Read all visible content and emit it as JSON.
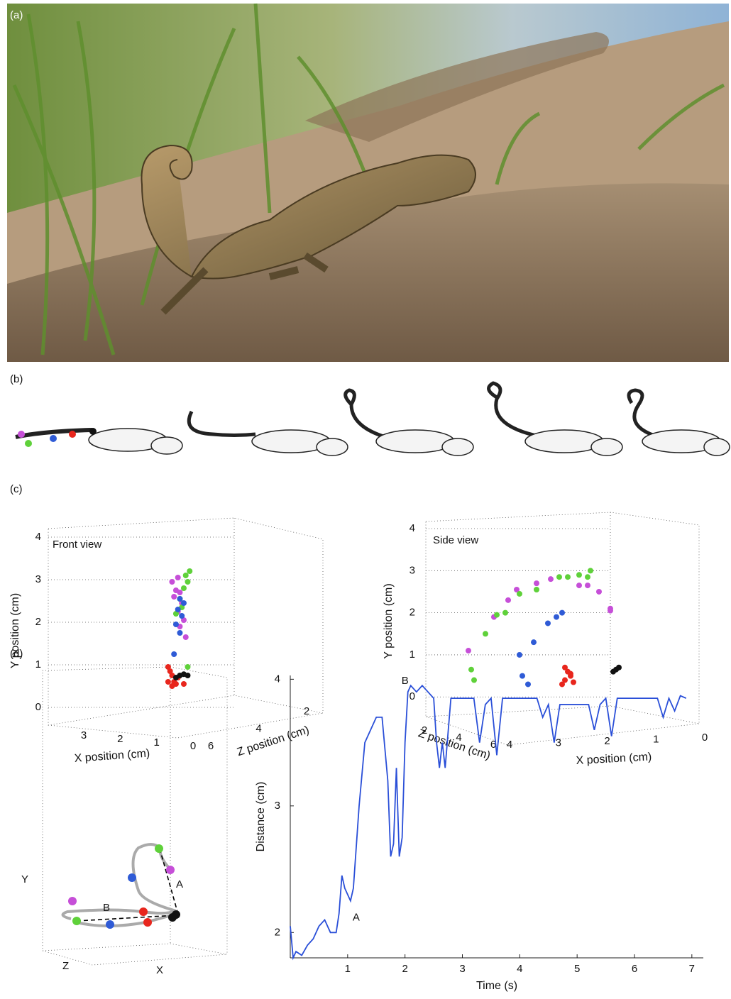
{
  "panels": {
    "a": "(a)",
    "b": "(b)",
    "c": "(c)",
    "d": "(d)"
  },
  "trajectory": {
    "x_label": "X",
    "y_label": "Y",
    "z_label": "Z",
    "annotations": [
      "A",
      "B"
    ]
  },
  "chart_data": [
    {
      "type": "scatter3d",
      "title": "Front view",
      "xlabel": "X position (cm)",
      "ylabel": "Y position (cm)",
      "zlabel": "Z position (cm)",
      "xlim": [
        0,
        3.7
      ],
      "ylim": [
        -0.4,
        4
      ],
      "xticks": [
        3,
        2,
        1,
        0
      ],
      "yticks": [
        0,
        1,
        2,
        3,
        4
      ],
      "zticks": [
        6,
        4,
        2
      ],
      "grid": true,
      "series": [
        {
          "color": "#c64fd8",
          "x": [
            0.35,
            0.5,
            0.4,
            0.3,
            0.45,
            0.25,
            0.35,
            0.2,
            0.3,
            0.15
          ],
          "values": [
            3.05,
            2.95,
            2.75,
            2.7,
            2.6,
            2.45,
            2.25,
            2.05,
            1.9,
            1.65
          ]
        },
        {
          "color": "#5fd13a",
          "x": [
            0.05,
            0.15,
            0.1,
            0.2,
            0.3,
            0.25,
            0.4,
            0.1
          ],
          "values": [
            3.2,
            3.1,
            2.95,
            2.8,
            2.55,
            2.35,
            2.2,
            0.95
          ]
        },
        {
          "color": "#2f5bd6",
          "x": [
            0.3,
            0.2,
            0.35,
            0.25,
            0.4,
            0.3,
            0.45
          ],
          "values": [
            2.55,
            2.45,
            2.3,
            2.15,
            1.95,
            1.75,
            1.25
          ]
        },
        {
          "color": "#e8261d",
          "x": [
            0.6,
            0.55,
            0.5,
            0.45,
            0.4,
            0.5,
            0.35,
            0.2,
            0.6
          ],
          "values": [
            0.95,
            0.85,
            0.75,
            0.6,
            0.55,
            0.5,
            0.7,
            0.55,
            0.6
          ]
        },
        {
          "color": "#111111",
          "x": [
            0.4,
            0.3,
            0.2,
            0.1
          ],
          "values": [
            0.7,
            0.75,
            0.78,
            0.75
          ]
        }
      ]
    },
    {
      "type": "scatter3d",
      "title": "Side view",
      "xlabel": "X position (cm)",
      "ylabel": "Y position (cm)",
      "zlabel": "Z position (cm)",
      "xlim": [
        0,
        4.2
      ],
      "ylim": [
        -0.4,
        4
      ],
      "xticks": [
        4,
        3,
        2,
        1,
        0
      ],
      "yticks": [
        0,
        1,
        2,
        3,
        4
      ],
      "zticks": [
        2,
        4,
        6
      ],
      "grid": true,
      "series": [
        {
          "color": "#c64fd8",
          "x": [
            4.0,
            3.55,
            3.3,
            3.15,
            2.8,
            2.55,
            2.05,
            1.9,
            1.7,
            1.5,
            1.5
          ],
          "values": [
            1.1,
            1.9,
            2.3,
            2.55,
            2.7,
            2.8,
            2.65,
            2.65,
            2.5,
            2.1,
            2.05
          ]
        },
        {
          "color": "#5fd13a",
          "x": [
            3.95,
            3.9,
            3.7,
            3.5,
            3.35,
            3.1,
            2.8,
            2.4,
            2.25,
            2.05,
            1.85,
            1.9
          ],
          "values": [
            0.65,
            0.4,
            1.5,
            1.95,
            2.0,
            2.45,
            2.55,
            2.85,
            2.85,
            2.9,
            3.0,
            2.85
          ]
        },
        {
          "color": "#2f5bd6",
          "x": [
            3.1,
            3.05,
            2.95,
            2.85,
            2.6,
            2.45,
            2.35
          ],
          "values": [
            1.0,
            0.5,
            0.3,
            1.3,
            1.75,
            1.9,
            2.0
          ]
        },
        {
          "color": "#e8261d",
          "x": [
            2.3,
            2.25,
            2.2,
            2.3,
            2.15,
            2.35,
            2.2
          ],
          "values": [
            0.7,
            0.6,
            0.5,
            0.4,
            0.35,
            0.3,
            0.55
          ]
        },
        {
          "color": "#111111",
          "x": [
            1.45,
            1.4,
            1.35
          ],
          "values": [
            0.6,
            0.65,
            0.7
          ]
        }
      ]
    },
    {
      "type": "line",
      "xlabel": "Time (s)",
      "ylabel": "Distance (cm)",
      "xlim": [
        0,
        7.2
      ],
      "ylim": [
        1.8,
        4.03
      ],
      "xticks": [
        1,
        2,
        3,
        4,
        5,
        6,
        7
      ],
      "yticks": [
        2,
        3,
        4
      ],
      "annotations": [
        "A",
        "B"
      ],
      "x": [
        0,
        0.05,
        0.1,
        0.2,
        0.3,
        0.4,
        0.5,
        0.6,
        0.7,
        0.8,
        0.85,
        0.9,
        0.95,
        1.0,
        1.05,
        1.1,
        1.2,
        1.3,
        1.4,
        1.5,
        1.6,
        1.7,
        1.75,
        1.8,
        1.85,
        1.9,
        1.95,
        2.0,
        2.05,
        2.1,
        2.2,
        2.3,
        2.4,
        2.5,
        2.55,
        2.6,
        2.65,
        2.7,
        2.8,
        3.0,
        3.2,
        3.3,
        3.4,
        3.5,
        3.6,
        3.7,
        4.0,
        4.3,
        4.4,
        4.5,
        4.6,
        4.7,
        5.0,
        5.2,
        5.3,
        5.4,
        5.5,
        5.6,
        5.7,
        6.0,
        6.4,
        6.5,
        6.6,
        6.7,
        6.8,
        6.9
      ],
      "series": [
        {
          "color": "#2a4fd8",
          "values": [
            2.05,
            1.8,
            1.85,
            1.82,
            1.9,
            1.95,
            2.05,
            2.1,
            2.0,
            2.0,
            2.15,
            2.45,
            2.35,
            2.3,
            2.25,
            2.35,
            3.0,
            3.5,
            3.6,
            3.7,
            3.7,
            3.2,
            2.6,
            2.7,
            3.3,
            2.6,
            2.75,
            3.5,
            3.9,
            3.95,
            3.9,
            3.95,
            3.9,
            3.85,
            3.5,
            3.3,
            3.5,
            3.3,
            3.85,
            3.85,
            3.85,
            3.5,
            3.8,
            3.85,
            3.4,
            3.85,
            3.85,
            3.85,
            3.7,
            3.8,
            3.5,
            3.8,
            3.8,
            3.8,
            3.6,
            3.8,
            3.85,
            3.55,
            3.85,
            3.85,
            3.85,
            3.7,
            3.85,
            3.75,
            3.87,
            3.85
          ]
        }
      ]
    }
  ]
}
